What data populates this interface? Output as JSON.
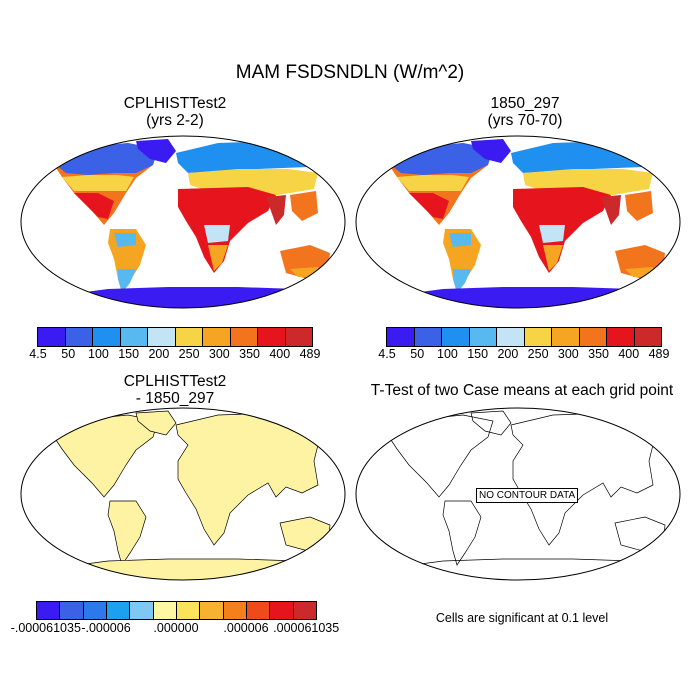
{
  "title": "MAM FSDSNDLN (W/m^2)",
  "panels": [
    {
      "title_line1": "CPLHISTTest2",
      "title_line2": "(yrs 2-2)"
    },
    {
      "title_line1": "1850_297",
      "title_line2": "(yrs 70-70)"
    },
    {
      "title_line1": "CPLHISTTest2",
      "title_line2": "- 1850_297"
    },
    {
      "title_line1": "T-Test of two Case means at each grid point",
      "title_line2": ""
    }
  ],
  "colorbar_abs": {
    "labels": [
      "4.5",
      "50",
      "100",
      "150",
      "200",
      "250",
      "300",
      "350",
      "400",
      "489"
    ],
    "colors": [
      "#3a1cf2",
      "#3b61e6",
      "#1f8ff0",
      "#57b9ef",
      "#c2e4f5",
      "#f7d446",
      "#f6a523",
      "#f2741c",
      "#e6141c",
      "#cc2a2a"
    ]
  },
  "colorbar_diff": {
    "labels": [
      "-.000061035",
      "-.000006",
      ".000000",
      ".000006",
      ".000061035"
    ],
    "colors": [
      "#3a1cf2",
      "#3b61e6",
      "#2d78ea",
      "#1ea0f0",
      "#7dc9f2",
      "#fff7a3",
      "#fde35a",
      "#f7b330",
      "#f57f1c",
      "#ee4a1b",
      "#e6141c",
      "#cc2a2a"
    ]
  },
  "no_data_label": "NO CONTOUR DATA",
  "significance_note": "Cells are significant at 0.1 level",
  "diff_fill_color": "#fdf3a2"
}
